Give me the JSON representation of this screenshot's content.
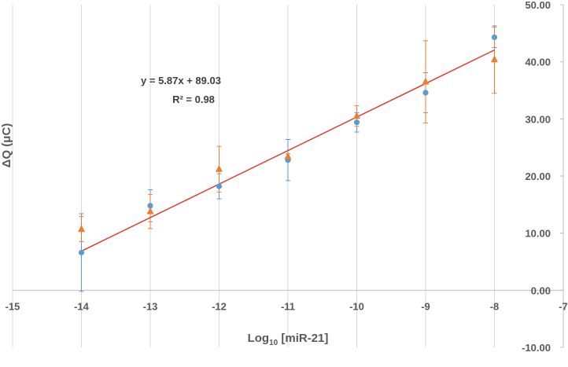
{
  "chart_data": {
    "type": "scatter",
    "xlabel": "Log",
    "xlabel_subscript": "10",
    "xlabel_suffix": " [miR-21]",
    "ylabel": "ΔQ (μC)",
    "xlim": [
      -15,
      -7
    ],
    "ylim": [
      -10,
      50
    ],
    "x_ticks": [
      -15,
      -14,
      -13,
      -12,
      -11,
      -10,
      -9,
      -8,
      -7
    ],
    "x_tick_labels": [
      "-15",
      "-14",
      "-13",
      "-12",
      "-11",
      "-10",
      "-9",
      "-8",
      "-7"
    ],
    "y_ticks": [
      -10,
      0,
      10,
      20,
      30,
      40,
      50
    ],
    "y_tick_labels": [
      "-10.00",
      "0.00",
      "10.00",
      "20.00",
      "30.00",
      "40.00",
      "50.00"
    ],
    "grid": "vertical",
    "annotation": {
      "equation": "y = 5.87x + 89.03",
      "r_squared": "R² = 0.98"
    },
    "series": [
      {
        "marker": "circle",
        "color": "#5B9BD5",
        "x": [
          -14,
          -13,
          -12,
          -11,
          -10,
          -9,
          -8
        ],
        "y": [
          6.6,
          14.8,
          18.2,
          22.8,
          29.4,
          34.6,
          44.3
        ],
        "error": [
          6.8,
          2.8,
          2.2,
          3.6,
          1.7,
          3.5,
          1.8
        ]
      },
      {
        "marker": "triangle",
        "color": "#ED7D31",
        "x": [
          -14,
          -13,
          -12,
          -11,
          -10,
          -9,
          -8
        ],
        "y": [
          10.7,
          13.8,
          21.2,
          23.4,
          30.5,
          36.5,
          40.4
        ],
        "error": [
          2.2,
          3.0,
          4.0,
          0.5,
          1.8,
          7.2,
          5.9
        ]
      }
    ],
    "trendline": {
      "color": "#E03C31",
      "slope": 5.87,
      "intercept": 89.03,
      "x_range": [
        -14,
        -8
      ]
    }
  }
}
